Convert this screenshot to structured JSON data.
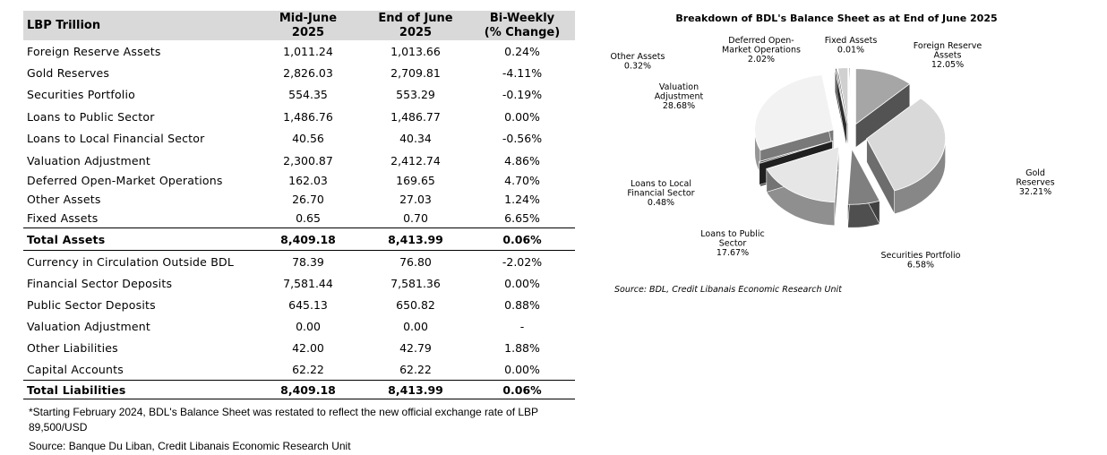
{
  "table": {
    "header": {
      "label": "LBP Trillion",
      "col1_line1": "Mid-June",
      "col1_line2": "2025",
      "col2_line1": "End of June",
      "col2_line2": "2025",
      "col3_line1": "Bi-Weekly",
      "col3_line2": "(% Change)"
    },
    "assets": [
      {
        "label": "Foreign Reserve Assets",
        "mid": "1,011.24",
        "end": "1,013.66",
        "chg": "0.24%"
      },
      {
        "label": "Gold Reserves",
        "mid": "2,826.03",
        "end": "2,709.81",
        "chg": "-4.11%"
      },
      {
        "label": "Securities Portfolio",
        "mid": "554.35",
        "end": "553.29",
        "chg": "-0.19%"
      },
      {
        "label": "Loans to Public Sector",
        "mid": "1,486.76",
        "end": "1,486.77",
        "chg": "0.00%"
      },
      {
        "label": "Loans to Local Financial Sector",
        "mid": "40.56",
        "end": "40.34",
        "chg": "-0.56%"
      },
      {
        "label": "Valuation Adjustment",
        "mid": "2,300.87",
        "end": "2,412.74",
        "chg": "4.86%"
      },
      {
        "label": "Deferred Open-Market Operations",
        "mid": "162.03",
        "end": "169.65",
        "chg": "4.70%"
      },
      {
        "label": "Other Assets",
        "mid": "26.70",
        "end": "27.03",
        "chg": "1.24%"
      },
      {
        "label": "Fixed Assets",
        "mid": "0.65",
        "end": "0.70",
        "chg": "6.65%"
      }
    ],
    "total_assets": {
      "label": "Total Assets",
      "mid": "8,409.18",
      "end": "8,413.99",
      "chg": "0.06%"
    },
    "liabilities": [
      {
        "label": "Currency in Circulation Outside BDL",
        "mid": "78.39",
        "end": "76.80",
        "chg": "-2.02%"
      },
      {
        "label": "Financial Sector Deposits",
        "mid": "7,581.44",
        "end": "7,581.36",
        "chg": "0.00%"
      },
      {
        "label": "Public Sector Deposits",
        "mid": "645.13",
        "end": "650.82",
        "chg": "0.88%"
      },
      {
        "label": "Valuation Adjustment",
        "mid": "0.00",
        "end": "0.00",
        "chg": "-"
      },
      {
        "label": "Other Liabilities",
        "mid": "42.00",
        "end": "42.79",
        "chg": "1.88%"
      },
      {
        "label": "Capital Accounts",
        "mid": "62.22",
        "end": "62.22",
        "chg": "0.00%"
      }
    ],
    "total_liabilities": {
      "label": "Total Liabilities",
      "mid": "8,409.18",
      "end": "8,413.99",
      "chg": "0.06%"
    },
    "footnote": "*Starting February 2024, BDL's Balance Sheet was restated to reflect the new official exchange rate of LBP 89,500/USD",
    "source": "Source: Banque Du Liban, Credit Libanais Economic Research Unit"
  },
  "chart_data": {
    "type": "pie",
    "title": "Breakdown of BDL's Balance Sheet as at End of June 2025",
    "slices": [
      {
        "label_lines": [
          "Foreign Reserve",
          "Assets"
        ],
        "pct_text": "12.05%",
        "value": 12.05,
        "color": "#a6a6a6"
      },
      {
        "label_lines": [
          "Gold",
          "Reserves"
        ],
        "pct_text": "32.21%",
        "value": 32.21,
        "color": "#d9d9d9"
      },
      {
        "label_lines": [
          "Securities Portfolio"
        ],
        "pct_text": "6.58%",
        "value": 6.58,
        "color": "#7f7f7f"
      },
      {
        "label_lines": [
          "Loans to Public",
          "Sector"
        ],
        "pct_text": "17.67%",
        "value": 17.67,
        "color": "#e6e6e6"
      },
      {
        "label_lines": [
          "Loans to Local",
          "Financial Sector"
        ],
        "pct_text": "0.48%",
        "value": 0.48,
        "color": "#404040"
      },
      {
        "label_lines": [
          "Valuation",
          "Adjustment"
        ],
        "pct_text": "28.68%",
        "value": 28.68,
        "color": "#f2f2f2"
      },
      {
        "label_lines": [
          "Other Assets"
        ],
        "pct_text": "0.32%",
        "value": 0.32,
        "color": "#595959"
      },
      {
        "label_lines": [
          "Deferred Open-",
          "Market Operations"
        ],
        "pct_text": "2.02%",
        "value": 2.02,
        "color": "#d0d0d0"
      },
      {
        "label_lines": [
          "Fixed Assets"
        ],
        "pct_text": "0.01%",
        "value": 0.01,
        "color": "#000000"
      }
    ],
    "source": "Source: BDL, Credit Libanais Economic Research Unit"
  }
}
